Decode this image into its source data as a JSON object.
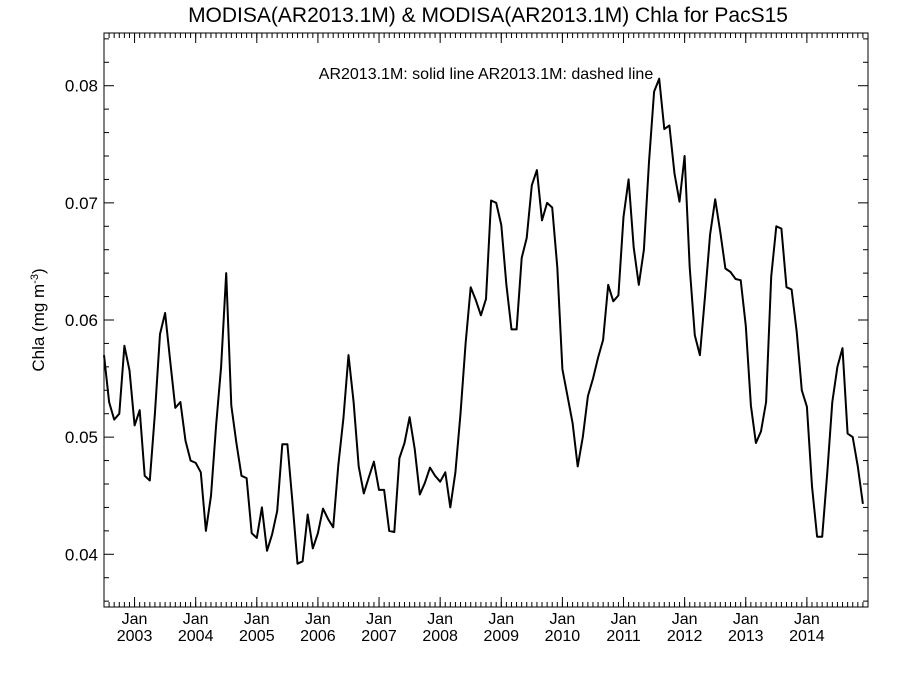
{
  "chart_data": {
    "type": "line",
    "title": "MODISA(AR2013.1M) & MODISA(AR2013.1M)  Chla for PacS15",
    "legend_text": "AR2013.1M: solid line   AR2013.1M: dashed line",
    "ylabel_main": "Chla (mg m",
    "ylabel_sup": "-3",
    "ylabel_close": ")",
    "ylim": [
      0.0355,
      0.0845
    ],
    "yticks": [
      {
        "value": 0.04,
        "label": "0.04"
      },
      {
        "value": 0.05,
        "label": "0.05"
      },
      {
        "value": 0.06,
        "label": "0.06"
      },
      {
        "value": 0.07,
        "label": "0.07"
      },
      {
        "value": 0.08,
        "label": "0.08"
      }
    ],
    "x_start": "2002-07",
    "x_end": "2015-01",
    "xticks": [
      {
        "date": "2003-01",
        "month": "Jan",
        "year": "2003"
      },
      {
        "date": "2004-01",
        "month": "Jan",
        "year": "2004"
      },
      {
        "date": "2005-01",
        "month": "Jan",
        "year": "2005"
      },
      {
        "date": "2006-01",
        "month": "Jan",
        "year": "2006"
      },
      {
        "date": "2007-01",
        "month": "Jan",
        "year": "2007"
      },
      {
        "date": "2008-01",
        "month": "Jan",
        "year": "2008"
      },
      {
        "date": "2009-01",
        "month": "Jan",
        "year": "2009"
      },
      {
        "date": "2010-01",
        "month": "Jan",
        "year": "2010"
      },
      {
        "date": "2011-01",
        "month": "Jan",
        "year": "2011"
      },
      {
        "date": "2012-01",
        "month": "Jan",
        "year": "2012"
      },
      {
        "date": "2013-01",
        "month": "Jan",
        "year": "2013"
      },
      {
        "date": "2014-01",
        "month": "Jan",
        "year": "2014"
      }
    ],
    "series": [
      {
        "style": "solid",
        "color": "#000000",
        "start": "2002-07",
        "values": [
          0.057,
          0.053,
          0.0515,
          0.052,
          0.0578,
          0.0557,
          0.051,
          0.0523,
          0.0467,
          0.0463,
          0.052,
          0.0588,
          0.0606,
          0.0565,
          0.0525,
          0.053,
          0.0497,
          0.048,
          0.0478,
          0.047,
          0.042,
          0.045,
          0.051,
          0.056,
          0.064,
          0.0527,
          0.0495,
          0.0467,
          0.0465,
          0.0418,
          0.0414,
          0.044,
          0.0403,
          0.0417,
          0.0437,
          0.0494,
          0.0494,
          0.0444,
          0.0392,
          0.0394,
          0.0434,
          0.0405,
          0.0418,
          0.0439,
          0.043,
          0.0423,
          0.0476,
          0.0516,
          0.057,
          0.053,
          0.0475,
          0.0452,
          0.0466,
          0.0479,
          0.0455,
          0.0455,
          0.042,
          0.0419,
          0.0482,
          0.0495,
          0.0517,
          0.049,
          0.0451,
          0.0461,
          0.0474,
          0.0467,
          0.0462,
          0.047,
          0.044,
          0.047,
          0.052,
          0.058,
          0.0628,
          0.0617,
          0.0604,
          0.0618,
          0.0702,
          0.07,
          0.0681,
          0.063,
          0.0592,
          0.0592,
          0.0653,
          0.067,
          0.0715,
          0.0728,
          0.0685,
          0.07,
          0.0696,
          0.0645,
          0.0558,
          0.0535,
          0.0512,
          0.0475,
          0.05,
          0.0535,
          0.055,
          0.0568,
          0.0583,
          0.063,
          0.0616,
          0.0621,
          0.0688,
          0.072,
          0.0662,
          0.063,
          0.066,
          0.0735,
          0.0795,
          0.0806,
          0.0763,
          0.0766,
          0.0725,
          0.0701,
          0.074,
          0.0645,
          0.0587,
          0.057,
          0.062,
          0.0673,
          0.0703,
          0.0675,
          0.0644,
          0.0641,
          0.0635,
          0.0634,
          0.0595,
          0.0527,
          0.0495,
          0.0505,
          0.053,
          0.0637,
          0.068,
          0.0678,
          0.0628,
          0.0626,
          0.059,
          0.054,
          0.0526,
          0.0458,
          0.0415,
          0.0415,
          0.047,
          0.053,
          0.056,
          0.0576,
          0.0503,
          0.05,
          0.0475,
          0.0443
        ]
      }
    ],
    "grid": false,
    "legend_position": "top-center"
  }
}
